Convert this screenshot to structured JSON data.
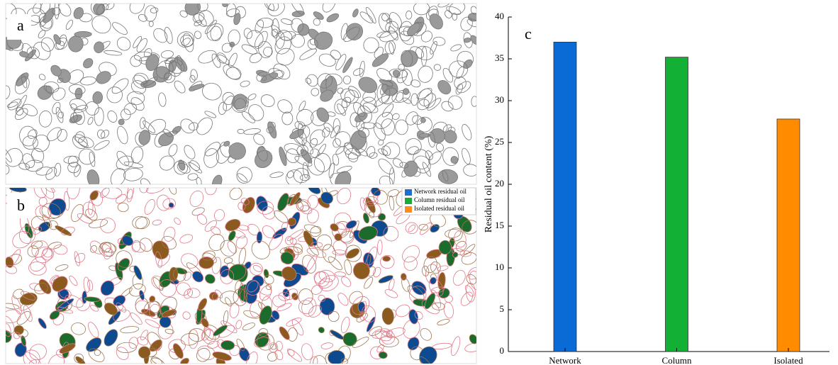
{
  "panels": {
    "a": "a",
    "b": "b",
    "legend": [
      {
        "name": "Network residual oil",
        "color": "#1f6fd0"
      },
      {
        "name": "Column residual oil",
        "color": "#1aaa3a"
      },
      {
        "name": "Isolated residual oil",
        "color": "#ff8c1a"
      }
    ]
  },
  "chart_data": {
    "type": "bar",
    "annotation": "c",
    "ylabel": "Residual oil content (%)",
    "categories": [
      "Network",
      "Column",
      "Isolated"
    ],
    "values": [
      37.0,
      35.2,
      27.8
    ],
    "colors": [
      "#0a6ad6",
      "#12b035",
      "#ff8c00"
    ],
    "ylim": [
      0,
      40
    ],
    "yticks": [
      0,
      5,
      10,
      15,
      20,
      25,
      30,
      35,
      40
    ]
  }
}
